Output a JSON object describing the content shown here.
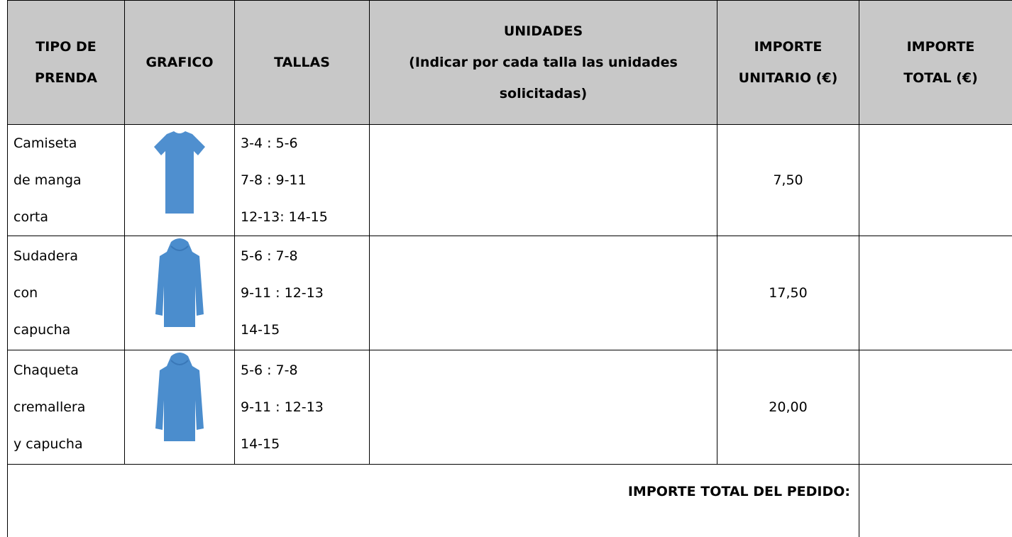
{
  "table": {
    "header": [
      [
        "TIPO DE",
        "PRENDA"
      ],
      [
        "GRAFICO"
      ],
      [
        "TALLAS"
      ],
      [
        "UNIDADES",
        "(Indicar por cada talla las unidades",
        "solicitadas)"
      ],
      [
        "IMPORTE",
        "UNITARIO (€)"
      ],
      [
        "IMPORTE",
        "TOTAL (€)"
      ]
    ],
    "rows": [
      {
        "prenda": [
          "Camiseta",
          "de manga",
          "corta"
        ],
        "tallas": [
          "3-4 : 5-6",
          "7-8 : 9-11",
          "12-13: 14-15"
        ],
        "importe_unitario": "7,50"
      },
      {
        "prenda": [
          "Sudadera",
          "con",
          "capucha"
        ],
        "tallas": [
          "5-6 : 7-8",
          "9-11 : 12-13",
          "14-15"
        ],
        "importe_unitario": "17,50"
      },
      {
        "prenda": [
          "Chaqueta",
          "cremallera",
          "y capucha"
        ],
        "tallas": [
          "5-6 : 7-8",
          "9-11 : 12-13",
          "14-15"
        ],
        "importe_unitario": "20,00"
      }
    ],
    "total_label": "IMPORTE TOTAL DEL PEDIDO:"
  }
}
